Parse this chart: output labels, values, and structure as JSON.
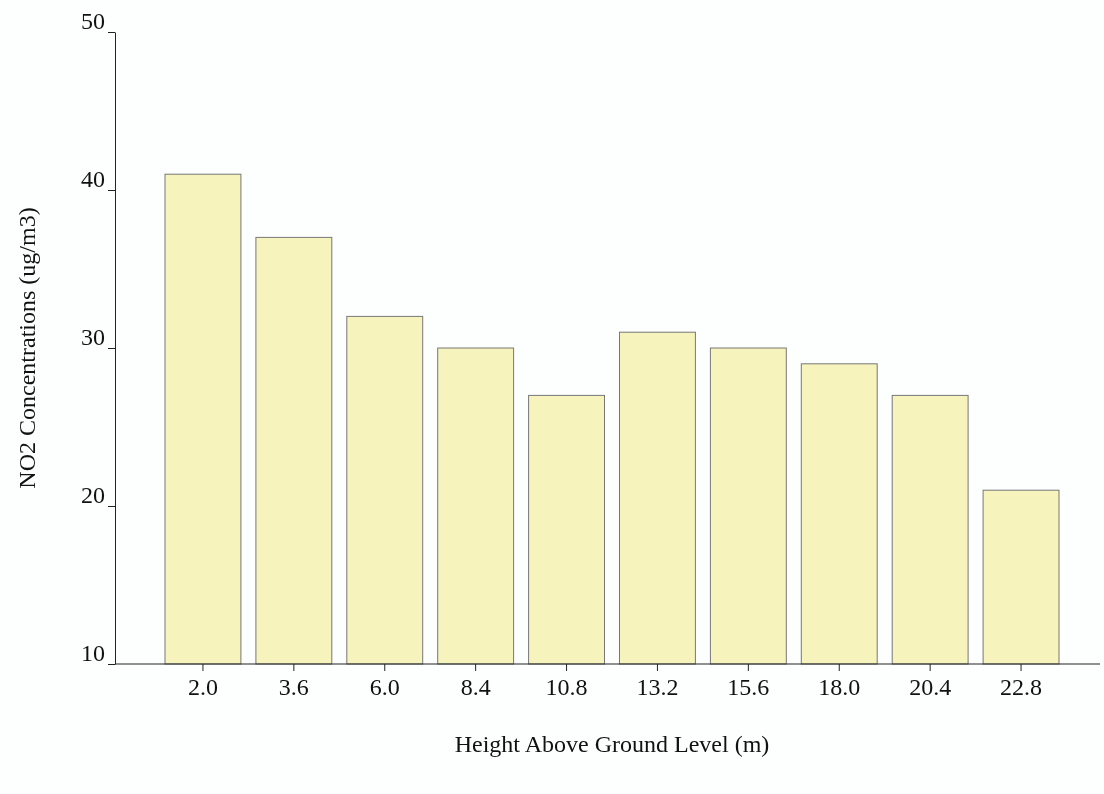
{
  "chart_data": {
    "type": "bar",
    "xlabel": "Height Above Ground Level (m)",
    "ylabel": "NO2 Concentrations (ug/m3)",
    "categories": [
      "2.0",
      "3.6",
      "6.0",
      "8.4",
      "10.8",
      "13.2",
      "15.6",
      "18.0",
      "20.4",
      "22.8"
    ],
    "values": [
      41,
      37,
      32,
      30,
      27,
      31,
      30,
      29,
      27,
      21
    ],
    "color": "#f6f4bc",
    "ylim": [
      10,
      50
    ],
    "yticks": [
      10,
      20,
      30,
      40,
      50
    ],
    "grid": false
  }
}
